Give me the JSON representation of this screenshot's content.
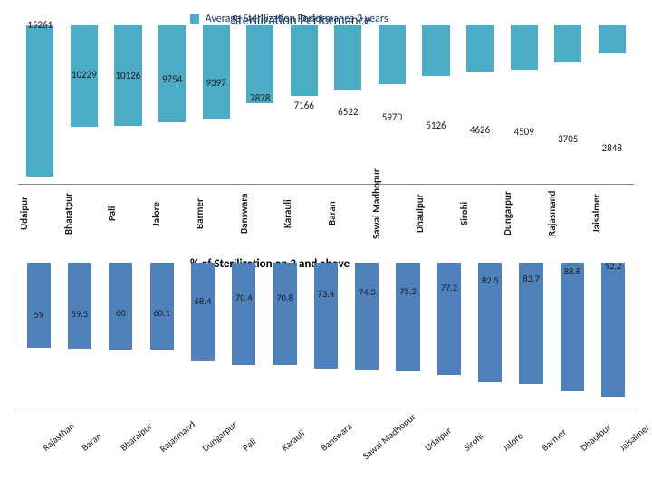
{
  "legend": {
    "swatch_color": "#4bacc6",
    "label": "Average Sterilization Performance 3 years"
  },
  "title_overlay": "Sterilization Performance",
  "top_chart": {
    "type": "bar",
    "bar_color": "#4bacc6",
    "axis_color": "#888888",
    "value_fontsize": 11,
    "label_fontsize": 11,
    "max": 16000,
    "categories": [
      "Udaipur",
      "Bharatpur",
      "Pali",
      "Jalore",
      "Barmer",
      "Banswara",
      "Karauli",
      "Baran",
      "Sawai Madhopur",
      "Dhaulpur",
      "Sirohi",
      "Dungarpur",
      "Rajasmand",
      "Jaisalmer"
    ],
    "values": [
      15261,
      10229,
      10126,
      9754,
      9397,
      7878,
      7166,
      6522,
      5970,
      5126,
      4626,
      4509,
      3705,
      2848
    ]
  },
  "bottom_chart": {
    "type": "bar",
    "title": "% of Sterilization on 3 and above",
    "bar_color": "#4f81bd",
    "axis_color": "#888888",
    "value_fontsize": 10.5,
    "label_fontsize": 10.5,
    "max": 100,
    "categories": [
      "Rajasthan",
      "Baran",
      "Bharalpur",
      "Rajasmand",
      "Dungarpur",
      "Pali",
      "Karauli",
      "Banswara",
      "Sawai Madhopur",
      "Udaipur",
      "Sirohi",
      "Jalore",
      "Barmer",
      "Dhaulpur",
      "Jaisalmer"
    ],
    "values": [
      59,
      59.5,
      60,
      60.1,
      68.4,
      70.4,
      70.8,
      73.4,
      74.3,
      75.2,
      77.2,
      82.5,
      83.7,
      88.8,
      92.2
    ]
  }
}
